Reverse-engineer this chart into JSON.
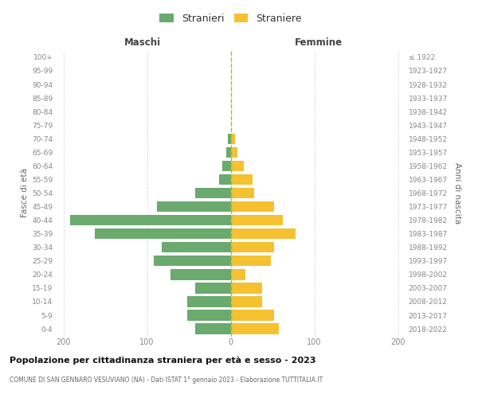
{
  "age_groups": [
    "100+",
    "95-99",
    "90-94",
    "85-89",
    "80-84",
    "75-79",
    "70-74",
    "65-69",
    "60-64",
    "55-59",
    "50-54",
    "45-49",
    "40-44",
    "35-39",
    "30-34",
    "25-29",
    "20-24",
    "15-19",
    "10-14",
    "5-9",
    "0-4"
  ],
  "birth_years": [
    "≤ 1922",
    "1923-1927",
    "1928-1932",
    "1933-1937",
    "1938-1942",
    "1943-1947",
    "1948-1952",
    "1953-1957",
    "1958-1962",
    "1963-1967",
    "1968-1972",
    "1973-1977",
    "1978-1982",
    "1983-1987",
    "1988-1992",
    "1993-1997",
    "1998-2002",
    "2003-2007",
    "2008-2012",
    "2013-2017",
    "2018-2022"
  ],
  "males": [
    0,
    0,
    0,
    0,
    0,
    0,
    3,
    5,
    10,
    14,
    42,
    88,
    192,
    162,
    82,
    92,
    72,
    42,
    52,
    52,
    42
  ],
  "females": [
    0,
    0,
    0,
    0,
    0,
    0,
    5,
    8,
    16,
    26,
    28,
    52,
    62,
    78,
    52,
    48,
    18,
    38,
    38,
    52,
    58
  ],
  "male_color": "#6aaa6e",
  "female_color": "#f5c131",
  "center_line_color": "#b8b820",
  "grid_color": "#d8d8d8",
  "title": "Popolazione per cittadinanza straniera per età e sesso - 2023",
  "subtitle": "COMUNE DI SAN GENNARO VESUVIANO (NA) - Dati ISTAT 1° gennaio 2023 - Elaborazione TUTTITALIA.IT",
  "label_maschi": "Maschi",
  "label_femmine": "Femmine",
  "ylabel_left": "Fasce di età",
  "ylabel_right": "Anni di nascita",
  "legend_stranieri": "Stranieri",
  "legend_straniere": "Straniere",
  "xlim": 210,
  "bar_height": 0.78,
  "bg_color": "#ffffff",
  "tick_color": "#888888",
  "header_color": "#444444",
  "title_color": "#111111",
  "subtitle_color": "#666666"
}
